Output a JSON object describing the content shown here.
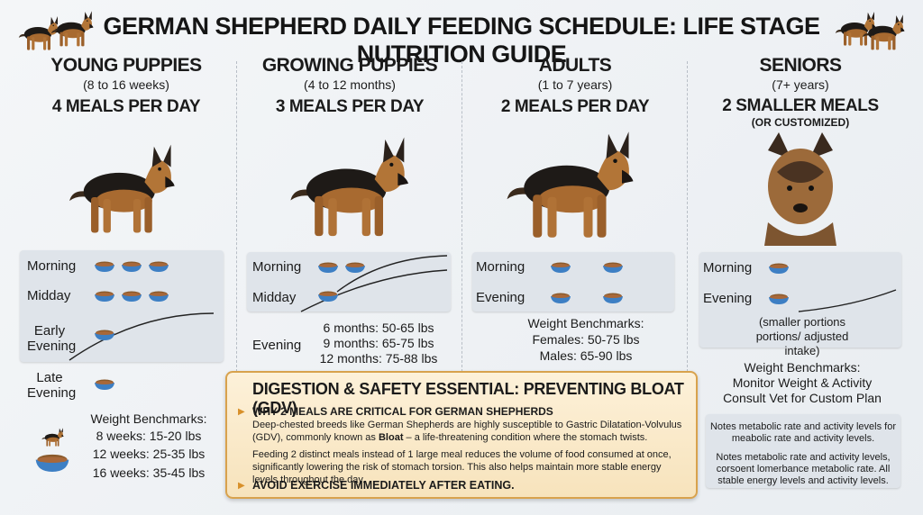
{
  "title": "GERMAN SHEPHERD DAILY FEEDING SCHEDULE: LIFE STAGE NUTRITION GUIDE",
  "stages": [
    {
      "name": "YOUNG PUPPIES",
      "age": "(8 to 16 weeks)",
      "meals_per_day": "4 MEALS PER DAY",
      "meals": [
        {
          "label": "Morning",
          "bowls": 3
        },
        {
          "label": "Midday",
          "bowls": 3
        },
        {
          "label": "Early Evening",
          "bowls": 1
        },
        {
          "label": "Late Evening",
          "bowls": 1
        }
      ],
      "weights_title": "Weight Benchmarks:",
      "weights": [
        "8 weeks: 15-20 lbs",
        "12 weeks: 25-35 lbs",
        "16 weeks: 35-45 lbs"
      ]
    },
    {
      "name": "GROWING PUPPIES",
      "age": "(4 to 12 months)",
      "meals_per_day": "3 MEALS PER DAY",
      "meals": [
        {
          "label": "Morning",
          "bowls": 2
        },
        {
          "label": "Midday",
          "bowls": 1
        },
        {
          "label": "Evening",
          "bowls": 0
        }
      ],
      "weights": [
        "6 months: 50-65 lbs",
        "9 months: 65-75 lbs",
        "12 months: 75-88 lbs"
      ]
    },
    {
      "name": "ADULTS",
      "age": "(1 to 7 years)",
      "meals_per_day": "2 MEALS PER DAY",
      "meals": [
        {
          "label": "Morning",
          "bowls": 2
        },
        {
          "label": "Evening",
          "bowls": 2
        }
      ],
      "weights_title": "Weight Benchmarks:",
      "weights": [
        "Females: 50-75 lbs",
        "Males: 65-90 lbs"
      ]
    },
    {
      "name": "SENIORS",
      "age": "(7+ years)",
      "meals_per_day": "2 SMALLER MEALS",
      "meals_note": "(OR CUSTOMIZED)",
      "meals": [
        {
          "label": "Morning",
          "bowls": 1
        },
        {
          "label": "Evening",
          "bowls": 1
        }
      ],
      "portion_note": "(smaller portions portions/ adjusted intake)",
      "weights_title": "Weight Benchmarks:",
      "weights": [
        "Monitor Weight & Activity",
        "Consult Vet for Custom Plan"
      ],
      "notes": [
        "Notes metabolic rate and activity levels for meabolic rate and activity levels.",
        "Notes metabolic rate and activity levels, corsoent lomerbance metabolic rate.  All stable energy levels and activity levels."
      ]
    }
  ],
  "callout": {
    "heading": "DIGESTION & SAFETY ESSENTIAL: PREVENTING BLOAT (GDV)",
    "subheading": "WHY 2 MEALS ARE CRITICAL FOR GERMAN SHEPHERDS",
    "paragraph1_start": "Deep-chested breeds like German Shepherds are highly susceptible to Gastric Dilatation-Volvulus (GDV), commonly known as ",
    "paragraph1_bold": "Bloat",
    "paragraph1_end": " – a life-threatening condition where the stomach twists.",
    "paragraph2": "Feeding 2 distinct meals instead of 1 large meal reduces the volume of food consumed at once, significantly lowering the risk of stomach torsion. This also helps maintain more stable energy levels throughout the day.",
    "warning": "AVOID EXERCISE IMMEDIATELY AFTER EATING."
  }
}
